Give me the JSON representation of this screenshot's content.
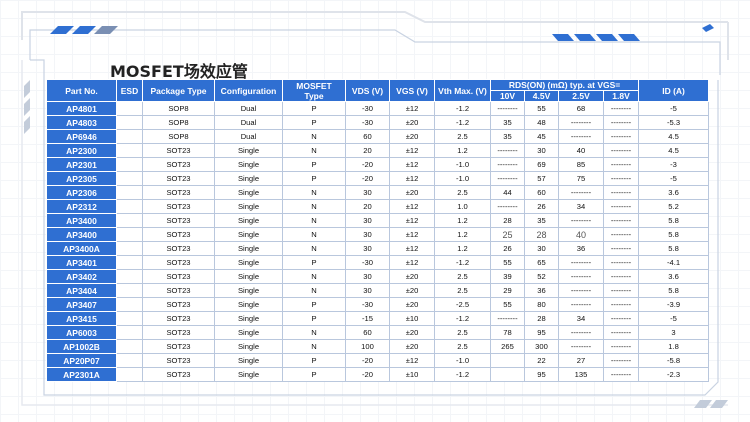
{
  "title": "MOSFET场效应管",
  "headers": {
    "part_no": "Part No.",
    "esd": "ESD",
    "package": "Package Type",
    "config": "Configuration",
    "mosfet_type": "MOSFET Type",
    "vds": "VDS (V)",
    "vgs": "VGS (V)",
    "vth": "Vth Max. (V)",
    "rds": "RDS(ON) (mΩ) typ. at VGS=",
    "rds_10": "10V",
    "rds_45": "4.5V",
    "rds_25": "2.5V",
    "rds_18": "1.8V",
    "id": "ID (A)"
  },
  "rows": [
    {
      "part": "AP4801",
      "esd": "",
      "pkg": "SOP8",
      "cfg": "Dual",
      "type": "P",
      "vds": "-30",
      "vgs": "±12",
      "vth": "-1.2",
      "r10": "--------",
      "r45": "55",
      "r25": "68",
      "r18": "--------",
      "id": "-5"
    },
    {
      "part": "AP4803",
      "esd": "",
      "pkg": "SOP8",
      "cfg": "Dual",
      "type": "P",
      "vds": "-30",
      "vgs": "±20",
      "vth": "-1.2",
      "r10": "35",
      "r45": "48",
      "r25": "--------",
      "r18": "--------",
      "id": "-5.3"
    },
    {
      "part": "AP6946",
      "esd": "",
      "pkg": "SOP8",
      "cfg": "Dual",
      "type": "N",
      "vds": "60",
      "vgs": "±20",
      "vth": "2.5",
      "r10": "35",
      "r45": "45",
      "r25": "--------",
      "r18": "--------",
      "id": "4.5"
    },
    {
      "part": "AP2300",
      "esd": "",
      "pkg": "SOT23",
      "cfg": "Single",
      "type": "N",
      "vds": "20",
      "vgs": "±12",
      "vth": "1.2",
      "r10": "--------",
      "r45": "30",
      "r25": "40",
      "r18": "--------",
      "id": "4.5"
    },
    {
      "part": "AP2301",
      "esd": "",
      "pkg": "SOT23",
      "cfg": "Single",
      "type": "P",
      "vds": "-20",
      "vgs": "±12",
      "vth": "-1.0",
      "r10": "--------",
      "r45": "69",
      "r25": "85",
      "r18": "--------",
      "id": "-3"
    },
    {
      "part": "AP2305",
      "esd": "",
      "pkg": "SOT23",
      "cfg": "Single",
      "type": "P",
      "vds": "-20",
      "vgs": "±12",
      "vth": "-1.0",
      "r10": "--------",
      "r45": "57",
      "r25": "75",
      "r18": "--------",
      "id": "-5"
    },
    {
      "part": "AP2306",
      "esd": "",
      "pkg": "SOT23",
      "cfg": "Single",
      "type": "N",
      "vds": "30",
      "vgs": "±20",
      "vth": "2.5",
      "r10": "44",
      "r45": "60",
      "r25": "--------",
      "r18": "--------",
      "id": "3.6"
    },
    {
      "part": "AP2312",
      "esd": "",
      "pkg": "SOT23",
      "cfg": "Single",
      "type": "N",
      "vds": "20",
      "vgs": "±12",
      "vth": "1.0",
      "r10": "--------",
      "r45": "26",
      "r25": "34",
      "r18": "--------",
      "id": "5.2"
    },
    {
      "part": "AP3400",
      "esd": "",
      "pkg": "SOT23",
      "cfg": "Single",
      "type": "N",
      "vds": "30",
      "vgs": "±12",
      "vth": "1.2",
      "r10": "28",
      "r45": "35",
      "r25": "--------",
      "r18": "--------",
      "id": "5.8"
    },
    {
      "part": "AP3400",
      "esd": "",
      "pkg": "SOT23",
      "cfg": "Single",
      "type": "N",
      "vds": "30",
      "vgs": "±12",
      "vth": "1.2",
      "r10": "25",
      "r45": "28",
      "r25": "40",
      "r18": "--------",
      "id": "5.8",
      "light": true
    },
    {
      "part": "AP3400A",
      "esd": "",
      "pkg": "SOT23",
      "cfg": "Single",
      "type": "N",
      "vds": "30",
      "vgs": "±12",
      "vth": "1.2",
      "r10": "26",
      "r45": "30",
      "r25": "36",
      "r18": "--------",
      "id": "5.8"
    },
    {
      "part": "AP3401",
      "esd": "",
      "pkg": "SOT23",
      "cfg": "Single",
      "type": "P",
      "vds": "-30",
      "vgs": "±12",
      "vth": "-1.2",
      "r10": "55",
      "r45": "65",
      "r25": "--------",
      "r18": "--------",
      "id": "-4.1"
    },
    {
      "part": "AP3402",
      "esd": "",
      "pkg": "SOT23",
      "cfg": "Single",
      "type": "N",
      "vds": "30",
      "vgs": "±20",
      "vth": "2.5",
      "r10": "39",
      "r45": "52",
      "r25": "--------",
      "r18": "--------",
      "id": "3.6"
    },
    {
      "part": "AP3404",
      "esd": "",
      "pkg": "SOT23",
      "cfg": "Single",
      "type": "N",
      "vds": "30",
      "vgs": "±20",
      "vth": "2.5",
      "r10": "29",
      "r45": "36",
      "r25": "--------",
      "r18": "--------",
      "id": "5.8"
    },
    {
      "part": "AP3407",
      "esd": "",
      "pkg": "SOT23",
      "cfg": "Single",
      "type": "P",
      "vds": "-30",
      "vgs": "±20",
      "vth": "-2.5",
      "r10": "55",
      "r45": "80",
      "r25": "--------",
      "r18": "--------",
      "id": "-3.9"
    },
    {
      "part": "AP3415",
      "esd": "",
      "pkg": "SOT23",
      "cfg": "Single",
      "type": "P",
      "vds": "-15",
      "vgs": "±10",
      "vth": "-1.2",
      "r10": "--------",
      "r45": "28",
      "r25": "34",
      "r18": "--------",
      "id": "-5"
    },
    {
      "part": "AP6003",
      "esd": "",
      "pkg": "SOT23",
      "cfg": "Single",
      "type": "N",
      "vds": "60",
      "vgs": "±20",
      "vth": "2.5",
      "r10": "78",
      "r45": "95",
      "r25": "--------",
      "r18": "--------",
      "id": "3"
    },
    {
      "part": "AP1002B",
      "esd": "",
      "pkg": "SOT23",
      "cfg": "Single",
      "type": "N",
      "vds": "100",
      "vgs": "±20",
      "vth": "2.5",
      "r10": "265",
      "r45": "300",
      "r25": "--------",
      "r18": "--------",
      "id": "1.8"
    },
    {
      "part": "AP20P07",
      "esd": "",
      "pkg": "SOT23",
      "cfg": "Single",
      "type": "P",
      "vds": "-20",
      "vgs": "±12",
      "vth": "-1.0",
      "r10": "",
      "r45": "22",
      "r25": "27",
      "r18": "--------",
      "id": "-5.8"
    },
    {
      "part": "AP2301A",
      "esd": "",
      "pkg": "SOT23",
      "cfg": "Single",
      "type": "P",
      "vds": "-20",
      "vgs": "±10",
      "vth": "-1.2",
      "r10": "",
      "r45": "95",
      "r25": "135",
      "r18": "--------",
      "id": "-2.3"
    }
  ]
}
